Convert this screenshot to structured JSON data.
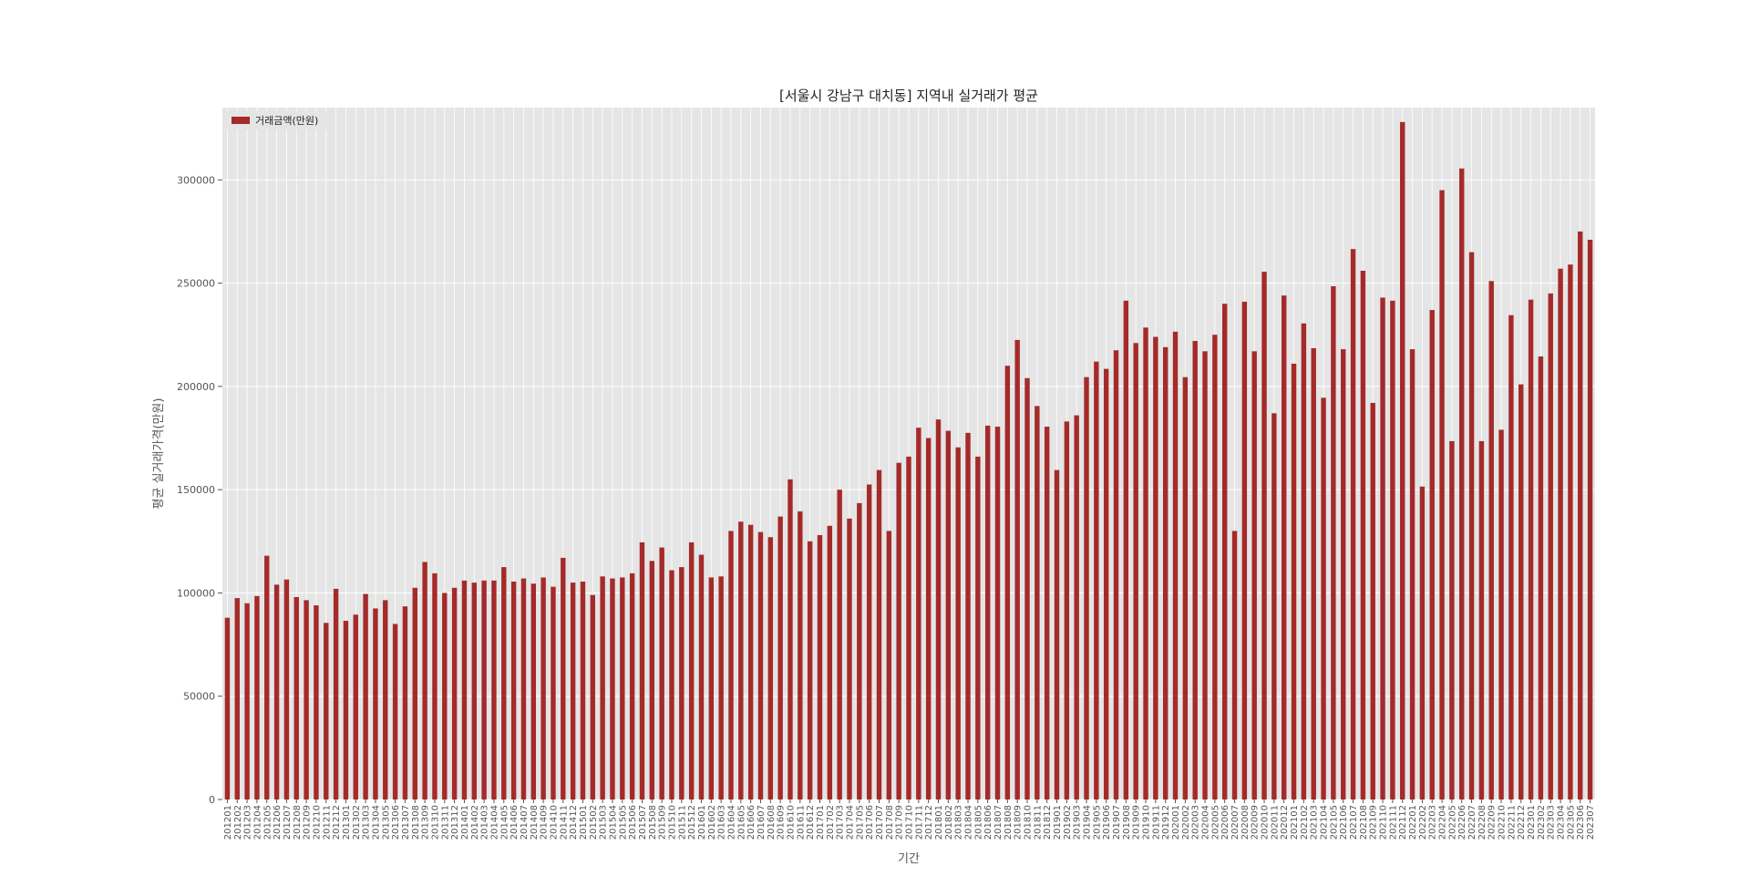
{
  "chart_data": {
    "type": "bar",
    "title": "[서울시 강남구 대치동] 지역내 실거래가 평균",
    "xlabel": "기간",
    "ylabel": "평균 실거래가격(만원)",
    "ylim": [
      0,
      335000
    ],
    "yticks": [
      0,
      50000,
      100000,
      150000,
      200000,
      250000,
      300000
    ],
    "ytick_labels": [
      "0",
      "50000",
      "100000",
      "150000",
      "200000",
      "250000",
      "300000"
    ],
    "grid": true,
    "legend_position": "top-left",
    "colors": {
      "bar": "#a52a2a",
      "plot_bg": "#e5e5e5",
      "grid": "#ffffff"
    },
    "categories": [
      "201201",
      "201202",
      "201203",
      "201204",
      "201205",
      "201206",
      "201207",
      "201208",
      "201209",
      "201210",
      "201211",
      "201212",
      "201301",
      "201302",
      "201303",
      "201304",
      "201305",
      "201306",
      "201307",
      "201308",
      "201309",
      "201310",
      "201311",
      "201312",
      "201401",
      "201402",
      "201403",
      "201404",
      "201405",
      "201406",
      "201407",
      "201408",
      "201409",
      "201410",
      "201411",
      "201412",
      "201501",
      "201502",
      "201503",
      "201504",
      "201505",
      "201506",
      "201507",
      "201508",
      "201509",
      "201510",
      "201511",
      "201512",
      "201601",
      "201602",
      "201603",
      "201604",
      "201605",
      "201606",
      "201607",
      "201608",
      "201609",
      "201610",
      "201611",
      "201612",
      "201701",
      "201702",
      "201703",
      "201704",
      "201705",
      "201706",
      "201707",
      "201708",
      "201709",
      "201710",
      "201711",
      "201712",
      "201801",
      "201802",
      "201803",
      "201804",
      "201805",
      "201806",
      "201807",
      "201808",
      "201809",
      "201810",
      "201811",
      "201812",
      "201901",
      "201902",
      "201903",
      "201904",
      "201905",
      "201906",
      "201907",
      "201908",
      "201909",
      "201910",
      "201911",
      "201912",
      "202001",
      "202002",
      "202003",
      "202004",
      "202005",
      "202006",
      "202007",
      "202008",
      "202009",
      "202010",
      "202011",
      "202012",
      "202101",
      "202102",
      "202103",
      "202104",
      "202105",
      "202106",
      "202107",
      "202108",
      "202109",
      "202110",
      "202111",
      "202112",
      "202201",
      "202202",
      "202203",
      "202204",
      "202205",
      "202206",
      "202207",
      "202208",
      "202209",
      "202210",
      "202211",
      "202212",
      "202301",
      "202302",
      "202303",
      "202304",
      "202305",
      "202306",
      "202307"
    ],
    "series": [
      {
        "name": "거래금액(만원)",
        "values": [
          88000,
          97500,
          95000,
          98500,
          118000,
          104000,
          106500,
          98000,
          96500,
          94000,
          85500,
          102000,
          86500,
          89500,
          99500,
          92500,
          96500,
          85000,
          93500,
          102500,
          115000,
          109500,
          100000,
          102500,
          106000,
          105000,
          106000,
          106000,
          112500,
          105500,
          107000,
          104500,
          107500,
          103000,
          117000,
          105000,
          105500,
          99000,
          108000,
          107000,
          107500,
          109500,
          124500,
          115500,
          122000,
          111000,
          112500,
          124500,
          118500,
          107500,
          108000,
          130000,
          134500,
          133000,
          129500,
          127000,
          137000,
          155000,
          139500,
          125000,
          128000,
          132500,
          150000,
          136000,
          143500,
          152500,
          159500,
          130000,
          163000,
          166000,
          180000,
          175000,
          184000,
          178500,
          170500,
          177500,
          166000,
          181000,
          180500,
          210000,
          222500,
          204000,
          190500,
          180500,
          159500,
          183000,
          186000,
          204500,
          212000,
          208500,
          217500,
          241500,
          221000,
          228500,
          224000,
          219000,
          226500,
          204500,
          222000,
          217000,
          225000,
          240000,
          130000,
          241000,
          217000,
          255500,
          187000,
          244000,
          211000,
          230500,
          218500,
          194500,
          248500,
          218000,
          266500,
          256000,
          192000,
          243000,
          241500,
          328000,
          218000,
          151500,
          237000,
          295000,
          173500,
          305500,
          265000,
          173500,
          251000,
          179000,
          234500,
          201000,
          242000,
          214500,
          245000,
          257000,
          259000,
          275000,
          271000
        ]
      }
    ]
  }
}
